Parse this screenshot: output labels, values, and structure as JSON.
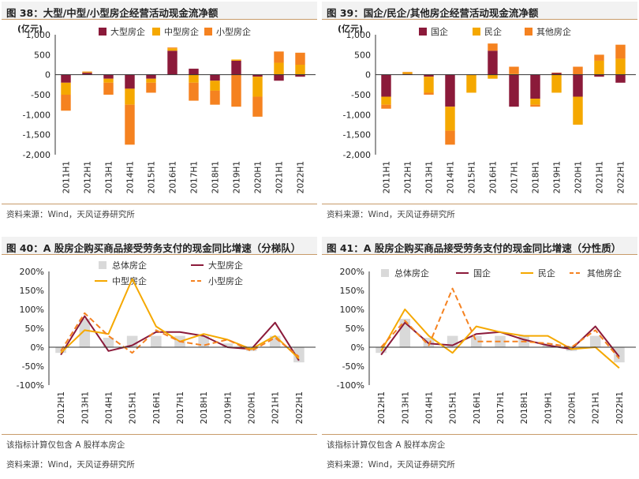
{
  "colors": {
    "dark_red": "#8b1a3a",
    "yellow": "#f5a800",
    "orange": "#f58220",
    "grey": "#d9d9d9"
  },
  "panels": {
    "p38": {
      "title": "图 38：大型/中型/小型房企经营活动现金流净额",
      "source": "资料来源：Wind，天风证券研究所"
    },
    "p39": {
      "title": "图 39：国企/民企/其他房企经营活动现金流净额",
      "source": "资料来源：Wind，天风证券研究所"
    },
    "p40": {
      "title": "图 40：A 股房企购买商品接受劳务支付的现金同比增速（分梯队）",
      "note": "该指标计算仅包含 A 股样本房企",
      "source": "资料来源：Wind，天风证券研究所"
    },
    "p41": {
      "title": "图 41：A 股房企购买商品接受劳务支付的现金同比增速（分性质）",
      "note": "该指标计算仅包含 A 股样本房企",
      "source": "资料来源：Wind，天风证券研究所"
    }
  },
  "chart_data": [
    {
      "id": "c38",
      "type": "bar",
      "stacked": true,
      "ylabel": "(亿元)",
      "ylim": [
        -2000,
        1000
      ],
      "yticks": [
        1000,
        500,
        0,
        -500,
        -1000,
        -1500,
        -2000
      ],
      "ytick_labels": [
        "1,000",
        "500",
        "0",
        "-500",
        "-1,000",
        "-1,500",
        "-2,000"
      ],
      "categories": [
        "2011H1",
        "2012H1",
        "2013H1",
        "2014H1",
        "2015H1",
        "2016H1",
        "2017H1",
        "2018H1",
        "2019H1",
        "2020H1",
        "2021H1",
        "2022H1"
      ],
      "series": [
        {
          "name": "大型房企",
          "color": "#8b1a3a",
          "values": [
            -200,
            50,
            -100,
            -350,
            -100,
            600,
            150,
            -150,
            350,
            -50,
            -150,
            -50
          ]
        },
        {
          "name": "中型房企",
          "color": "#f5a800",
          "values": [
            -300,
            20,
            -100,
            -400,
            -100,
            60,
            -200,
            -250,
            30,
            -500,
            300,
            250
          ]
        },
        {
          "name": "小型房企",
          "color": "#f58220",
          "values": [
            -400,
            10,
            -300,
            -1000,
            -250,
            20,
            -450,
            -350,
            -800,
            -500,
            280,
            300
          ]
        }
      ]
    },
    {
      "id": "c39",
      "type": "bar",
      "stacked": true,
      "ylabel": "(亿元)",
      "ylim": [
        -2000,
        1000
      ],
      "yticks": [
        1000,
        500,
        0,
        -500,
        -1000,
        -1500,
        -2000
      ],
      "ytick_labels": [
        "1,000",
        "500",
        "0",
        "-500",
        "-1,000",
        "-1,500",
        "-2,000"
      ],
      "categories": [
        "2011H1",
        "2012H1",
        "2013H1",
        "2014H1",
        "2015H1",
        "2016H1",
        "2017H1",
        "2018H1",
        "2019H1",
        "2020H1",
        "2021H1",
        "2022H1"
      ],
      "series": [
        {
          "name": "国企",
          "color": "#8b1a3a",
          "values": [
            -550,
            20,
            -50,
            -800,
            0,
            600,
            -800,
            -600,
            50,
            -550,
            -50,
            -200
          ]
        },
        {
          "name": "民企",
          "color": "#f5a800",
          "values": [
            -200,
            40,
            -400,
            -600,
            -450,
            -100,
            20,
            -150,
            -450,
            -700,
            350,
            400
          ]
        },
        {
          "name": "其他房企",
          "color": "#f58220",
          "values": [
            -100,
            10,
            -50,
            -350,
            0,
            180,
            180,
            -50,
            0,
            200,
            150,
            350
          ]
        }
      ]
    },
    {
      "id": "c40",
      "type": "line",
      "ylim": [
        -100,
        200
      ],
      "yticks": [
        200,
        150,
        100,
        50,
        0,
        -50,
        -100
      ],
      "ytick_labels": [
        "200%",
        "150%",
        "100%",
        "50%",
        "0%",
        "-50%",
        "-100%"
      ],
      "categories": [
        "2012H1",
        "2013H1",
        "2014H1",
        "2015H1",
        "2016H1",
        "2017H1",
        "2018H1",
        "2019H1",
        "2020H1",
        "2021H1",
        "2022H1"
      ],
      "bar_series": {
        "name": "总体房企",
        "color": "#d9d9d9",
        "values": [
          -15,
          75,
          25,
          30,
          30,
          30,
          30,
          10,
          -10,
          30,
          -40
        ]
      },
      "series": [
        {
          "name": "大型房企",
          "color": "#8b1a3a",
          "style": "solid",
          "values": [
            -20,
            82,
            -10,
            5,
            40,
            40,
            30,
            0,
            -5,
            65,
            -35
          ]
        },
        {
          "name": "中型房企",
          "color": "#f5a800",
          "style": "solid",
          "values": [
            -15,
            45,
            35,
            180,
            55,
            15,
            35,
            20,
            -5,
            30,
            -30
          ]
        },
        {
          "name": "小型房企",
          "color": "#f58220",
          "style": "dashed",
          "values": [
            -10,
            90,
            30,
            -15,
            45,
            15,
            5,
            20,
            -10,
            25,
            -25
          ]
        }
      ]
    },
    {
      "id": "c41",
      "type": "line",
      "ylim": [
        -100,
        200
      ],
      "yticks": [
        200,
        150,
        100,
        50,
        0,
        -50,
        -100
      ],
      "ytick_labels": [
        "200%",
        "150%",
        "100%",
        "50%",
        "0%",
        "-50%",
        "-100%"
      ],
      "categories": [
        "2012H1",
        "2013H1",
        "2014H1",
        "2015H1",
        "2016H1",
        "2017H1",
        "2018H1",
        "2019H1",
        "2020H1",
        "2021H1",
        "2022H1"
      ],
      "bar_series": {
        "name": "总体房企",
        "color": "#d9d9d9",
        "values": [
          -15,
          75,
          25,
          30,
          30,
          30,
          30,
          10,
          -10,
          30,
          -40
        ]
      },
      "series": [
        {
          "name": "国企",
          "color": "#8b1a3a",
          "style": "solid",
          "values": [
            -20,
            65,
            10,
            5,
            35,
            40,
            20,
            5,
            -5,
            55,
            -25
          ]
        },
        {
          "name": "民企",
          "color": "#f5a800",
          "style": "solid",
          "values": [
            -10,
            100,
            30,
            -15,
            55,
            40,
            30,
            30,
            -5,
            0,
            -55
          ]
        },
        {
          "name": "其他房企",
          "color": "#f58220",
          "style": "dashed",
          "values": [
            0,
            70,
            5,
            155,
            15,
            15,
            15,
            10,
            0,
            45,
            -30
          ]
        }
      ]
    }
  ]
}
